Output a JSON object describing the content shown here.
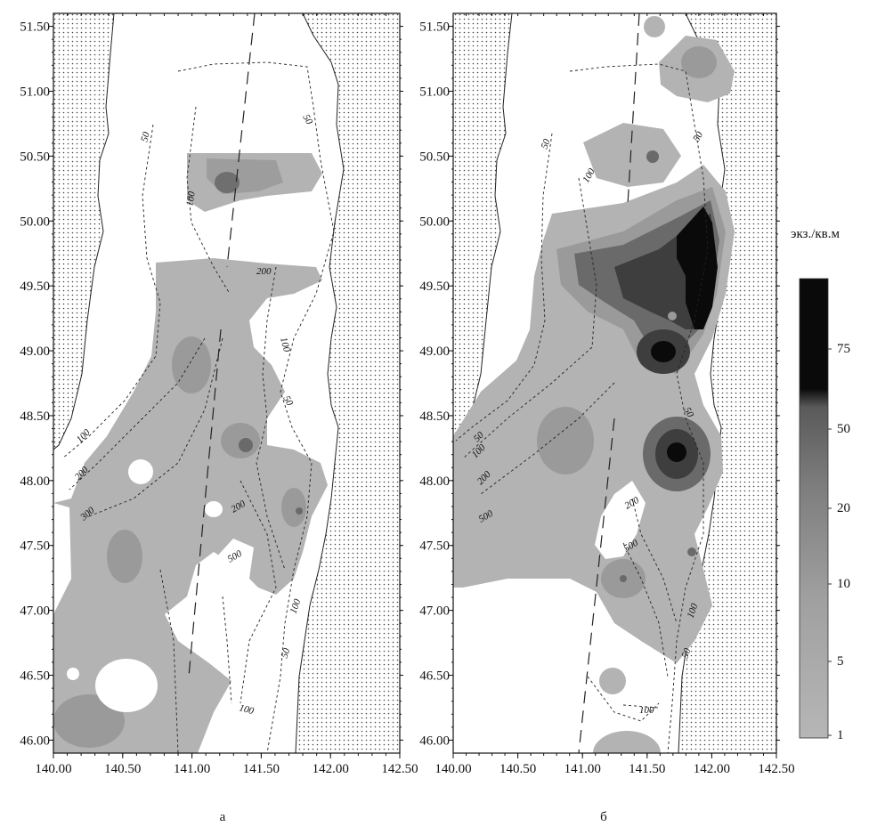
{
  "panels": [
    {
      "label": "а",
      "x_ticks": [
        "140.00",
        "140.50",
        "141.00",
        "141.50",
        "142.00",
        "142.50"
      ],
      "y_ticks": [
        "51.50",
        "51.00",
        "50.50",
        "50.00",
        "49.50",
        "49.00",
        "48.50",
        "48.00",
        "47.50",
        "47.00",
        "46.50",
        "46.00"
      ],
      "isobath_labels": [
        "50",
        "100",
        "200",
        "50",
        "100",
        "50",
        "100",
        "200",
        "300",
        "200",
        "500",
        "100",
        "50",
        "100"
      ]
    },
    {
      "label": "б",
      "x_ticks": [
        "140.00",
        "140.50",
        "141.00",
        "141.50",
        "142.00",
        "142.50"
      ],
      "y_ticks": [
        "51.50",
        "51.00",
        "50.50",
        "50.00",
        "49.50",
        "49.00",
        "48.50",
        "48.00",
        "47.50",
        "47.00",
        "46.50",
        "46.00"
      ],
      "isobath_labels": [
        "50",
        "100",
        "50",
        "50",
        "100",
        "200",
        "500",
        "50",
        "200",
        "500",
        "100",
        "50",
        "100"
      ]
    }
  ],
  "legend": {
    "title": "экз./кв.м",
    "ticks": [
      "75",
      "50",
      "20",
      "10",
      "5",
      "1"
    ],
    "colors": [
      "#0a0a0a",
      "#3c3c3c",
      "#5e5e5e",
      "#7c7c7c",
      "#9a9a9a",
      "#b4b4b4"
    ]
  }
}
